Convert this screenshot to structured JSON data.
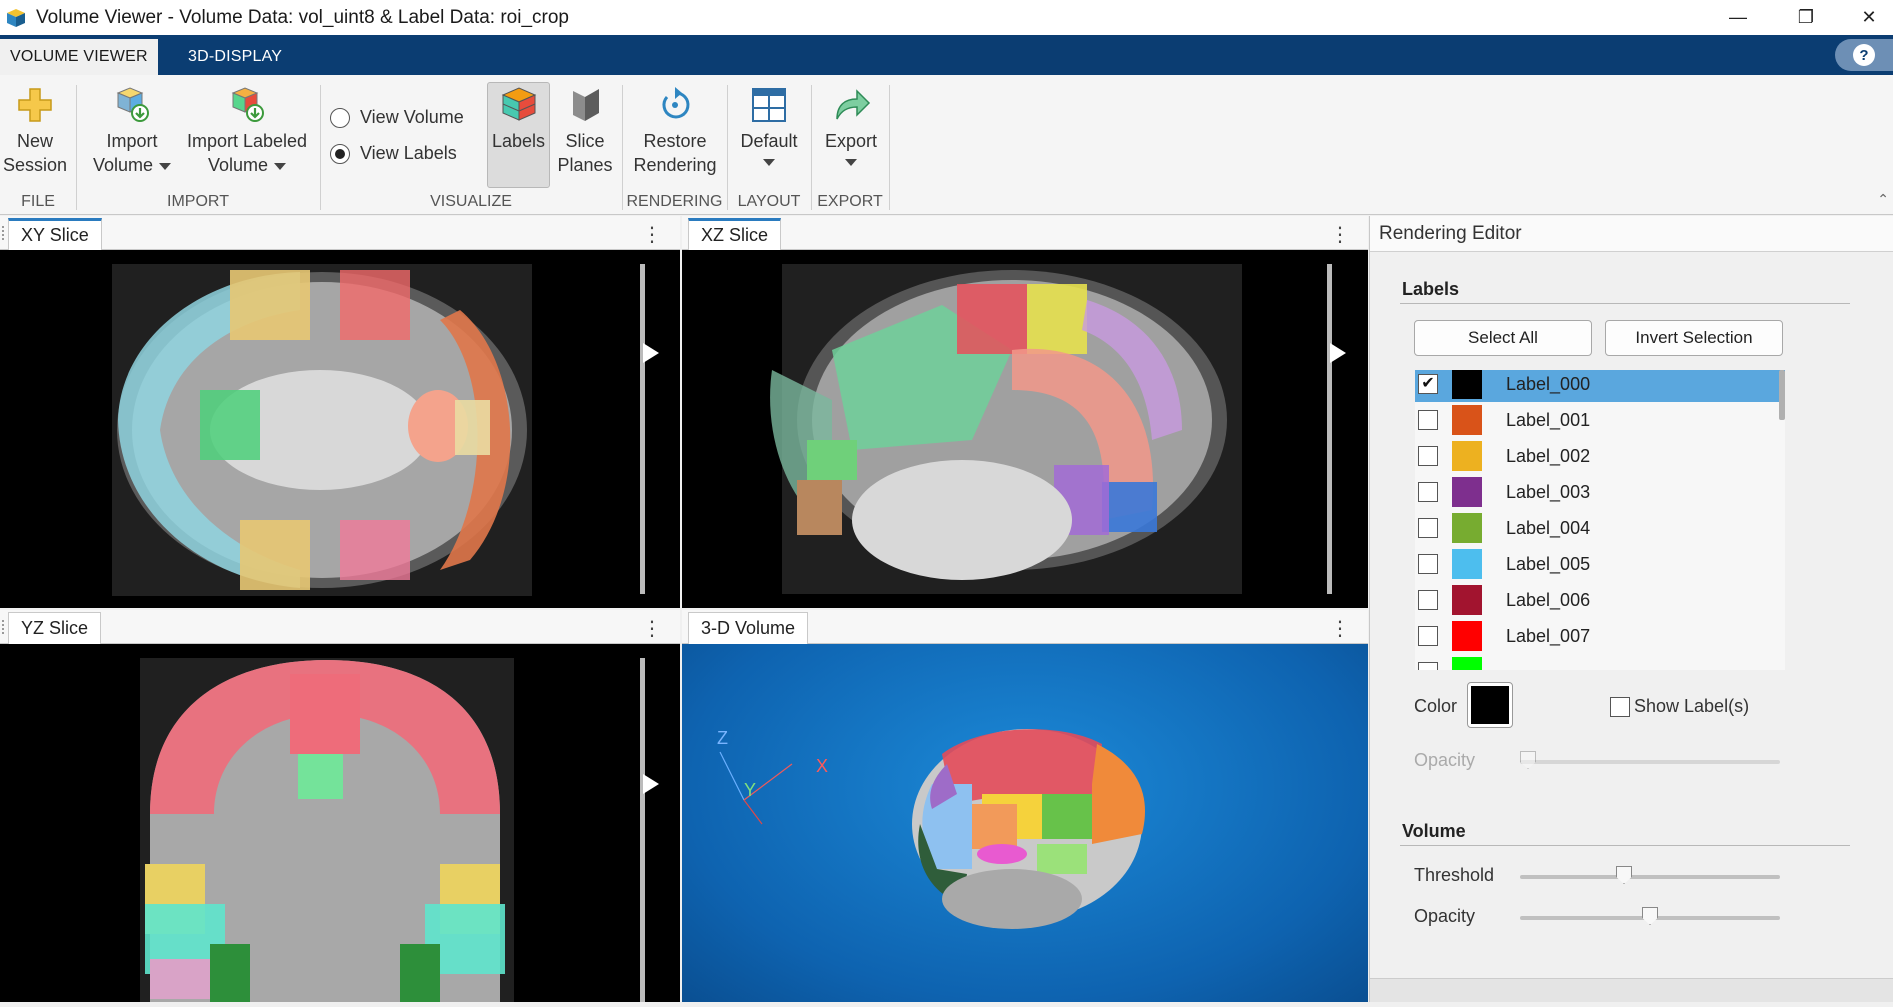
{
  "window": {
    "title": "Volume Viewer - Volume Data: vol_uint8 & Label Data: roi_crop",
    "minimize": "—",
    "restore": "❐",
    "close": "✕"
  },
  "tabs": [
    {
      "label": "VOLUME VIEWER",
      "active": true
    },
    {
      "label": "3D-DISPLAY",
      "active": false
    }
  ],
  "help_icon": "?",
  "toolstrip": {
    "new_session": [
      "New",
      "Session"
    ],
    "import_volume": [
      "Import",
      "Volume"
    ],
    "import_labeled": [
      "Import Labeled",
      "Volume"
    ],
    "view_volume": "View Volume",
    "view_labels": "View Labels",
    "labels": "Labels",
    "slice_planes": [
      "Slice",
      "Planes"
    ],
    "restore_rendering": [
      "Restore",
      "Rendering"
    ],
    "default_layout": "Default",
    "export": "Export",
    "groups": [
      "FILE",
      "IMPORT",
      "VISUALIZE",
      "RENDERING",
      "LAYOUT",
      "EXPORT"
    ]
  },
  "panels": {
    "xy": "XY Slice",
    "xz": "XZ Slice",
    "yz": "YZ Slice",
    "vol3d": "3-D Volume",
    "axes": {
      "x": "X",
      "y": "Y",
      "z": "Z"
    }
  },
  "editor": {
    "title": "Rendering Editor",
    "labels_section": "Labels",
    "select_all": "Select All",
    "invert_selection": "Invert Selection",
    "labels": [
      {
        "name": "Label_000",
        "color": "#000000",
        "checked": true,
        "selected": true
      },
      {
        "name": "Label_001",
        "color": "#d95319",
        "checked": false,
        "selected": false
      },
      {
        "name": "Label_002",
        "color": "#edb120",
        "checked": false,
        "selected": false
      },
      {
        "name": "Label_003",
        "color": "#7e2f8e",
        "checked": false,
        "selected": false
      },
      {
        "name": "Label_004",
        "color": "#77ac30",
        "checked": false,
        "selected": false
      },
      {
        "name": "Label_005",
        "color": "#4dbeee",
        "checked": false,
        "selected": false
      },
      {
        "name": "Label_006",
        "color": "#a2142f",
        "checked": false,
        "selected": false
      },
      {
        "name": "Label_007",
        "color": "#ff0000",
        "checked": false,
        "selected": false
      },
      {
        "name": "",
        "color": "#00ff00",
        "checked": false,
        "selected": false
      }
    ],
    "color_label": "Color",
    "show_labels": "Show Label(s)",
    "opacity_label": "Opacity",
    "volume_section": "Volume",
    "threshold_label": "Threshold",
    "volume_opacity_label": "Opacity",
    "threshold_value": 0.4,
    "volume_opacity_value": 0.5,
    "label_opacity_value": 0.0
  }
}
